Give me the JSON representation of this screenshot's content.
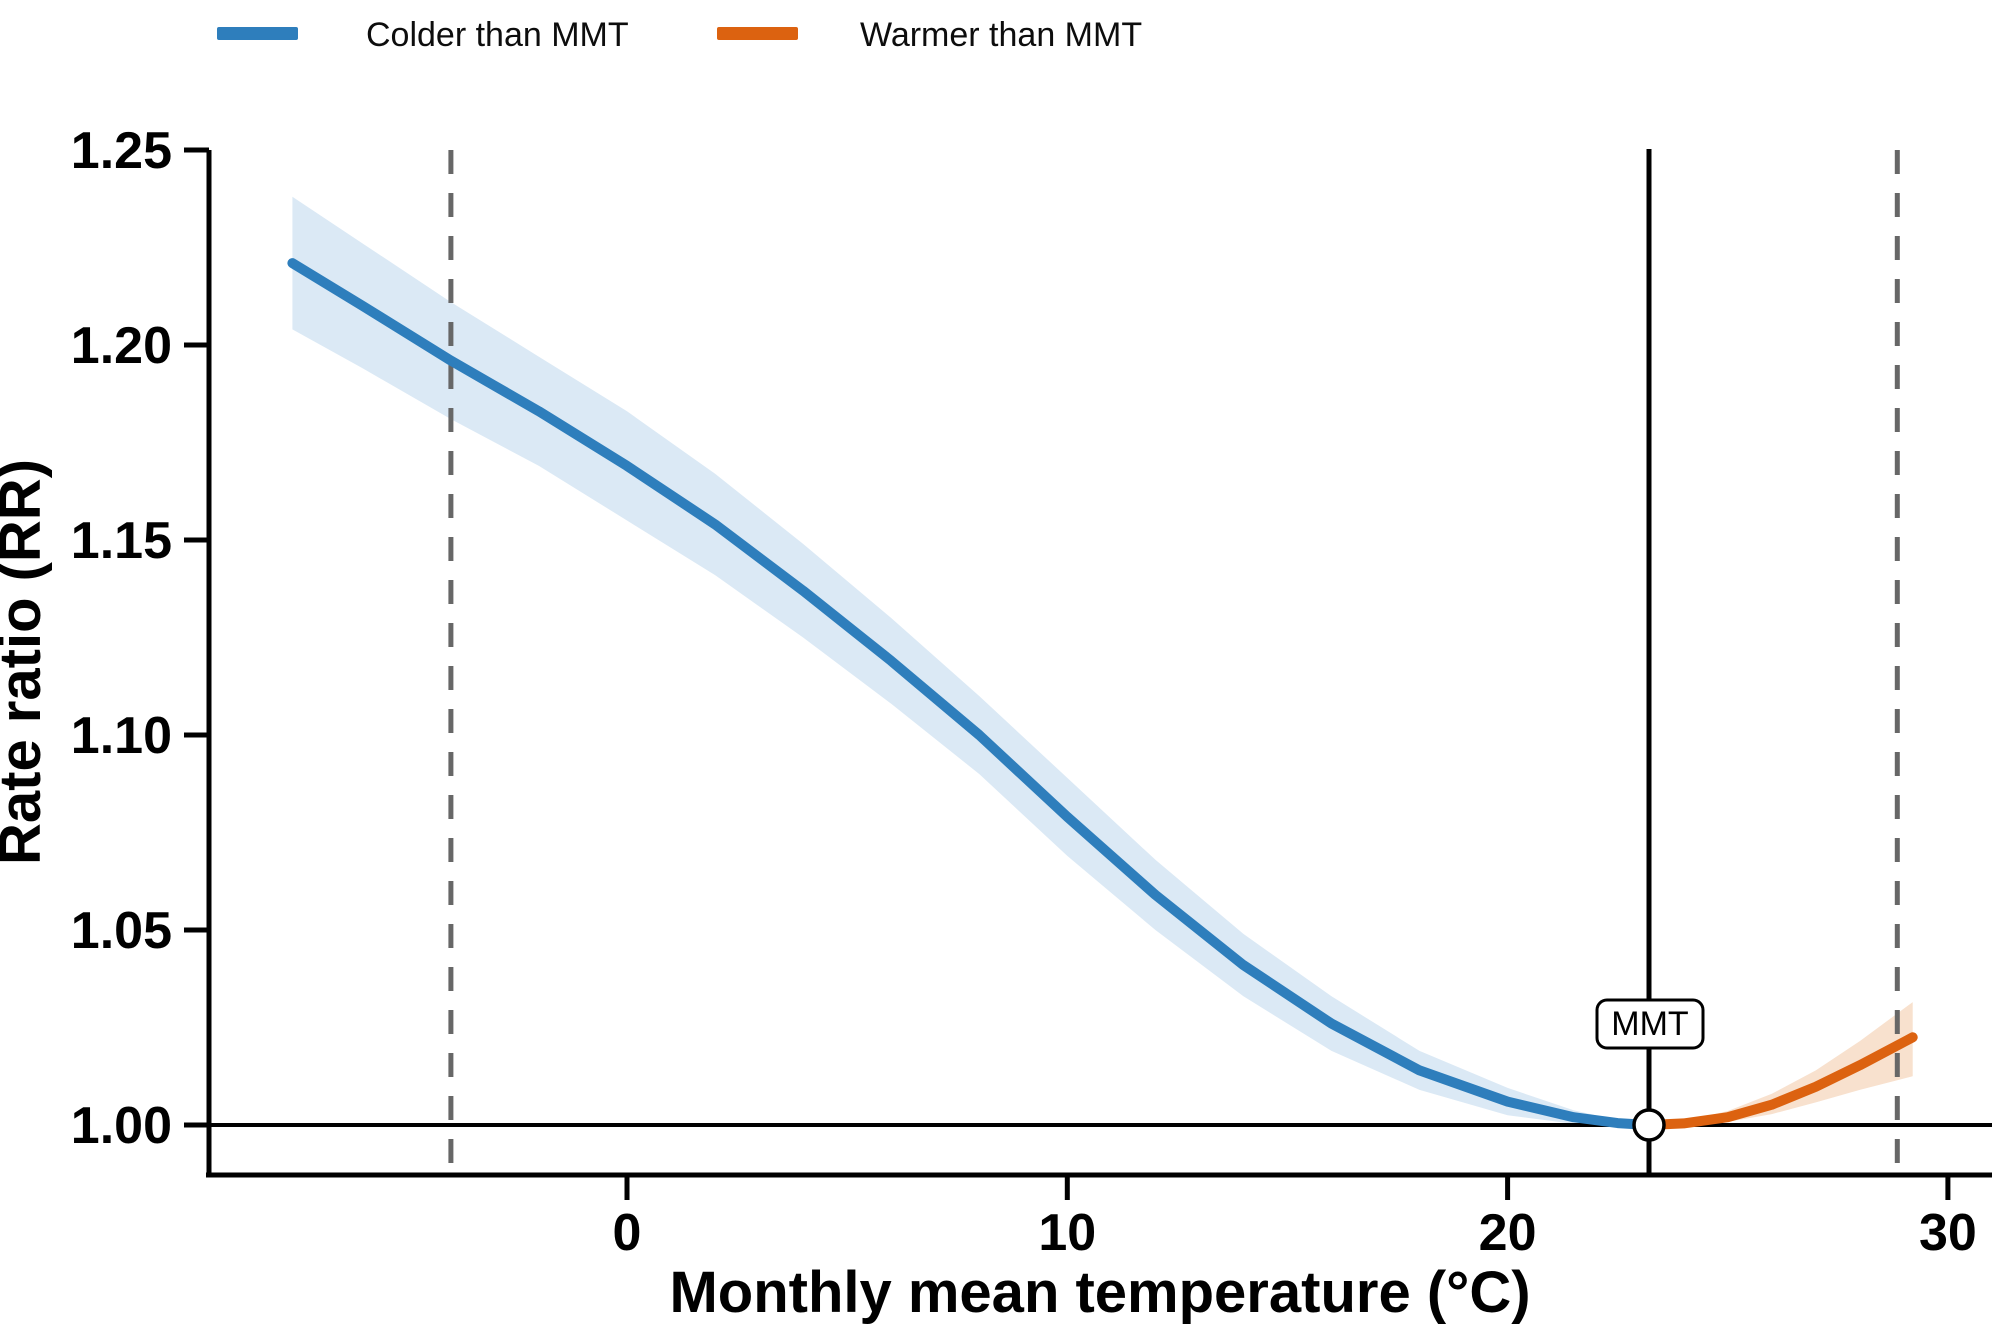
{
  "chart_data": {
    "type": "line",
    "title": "",
    "xlabel": "Monthly mean temperature (°C)",
    "ylabel": "Rate ratio (RR)",
    "x_ticks": [
      0,
      10,
      20,
      30
    ],
    "y_ticks": [
      "1.00",
      "1.05",
      "1.10",
      "1.15",
      "1.20",
      "1.25"
    ],
    "xlim": [
      -9.5,
      31
    ],
    "ylim": [
      0.987,
      1.25
    ],
    "reference_line_rr": 1.0,
    "dashed_guide_temps": [
      -4.0,
      28.85
    ],
    "mmt": {
      "label": "MMT",
      "temp": 23.2,
      "rr": 1.0
    },
    "legend": [
      "Colder than MMT",
      "Warmer than MMT"
    ],
    "colors": {
      "cold_line": "#2e7ebc",
      "cold_band": "#dbe9f5",
      "warm_line": "#dc6210",
      "warm_band": "#f8e1ce",
      "dashed_guide": "#676767",
      "axis": "#000000"
    },
    "series": [
      {
        "name": "Colder than MMT",
        "color": "#2e7ebc",
        "band_color": "#dbe9f5",
        "points_t_rr_lo_hi": [
          [
            -7.6,
            1.221,
            1.204,
            1.238
          ],
          [
            -6.0,
            1.21,
            1.194,
            1.226
          ],
          [
            -4.0,
            1.196,
            1.181,
            1.211
          ],
          [
            -2.0,
            1.183,
            1.169,
            1.197
          ],
          [
            0.0,
            1.169,
            1.155,
            1.183
          ],
          [
            2.0,
            1.154,
            1.141,
            1.167
          ],
          [
            4.0,
            1.137,
            1.125,
            1.149
          ],
          [
            6.0,
            1.119,
            1.108,
            1.13
          ],
          [
            8.0,
            1.1,
            1.09,
            1.11
          ],
          [
            10.0,
            1.079,
            1.069,
            1.089
          ],
          [
            12.0,
            1.059,
            1.05,
            1.068
          ],
          [
            14.0,
            1.041,
            1.033,
            1.049
          ],
          [
            16.0,
            1.026,
            1.019,
            1.033
          ],
          [
            18.0,
            1.014,
            1.009,
            1.019
          ],
          [
            20.0,
            1.006,
            1.0025,
            1.0095
          ],
          [
            21.5,
            1.002,
            1.0003,
            1.0038
          ],
          [
            22.5,
            1.0005,
            0.9998,
            1.0012
          ],
          [
            23.2,
            1.0,
            1.0,
            1.0
          ]
        ]
      },
      {
        "name": "Warmer than MMT",
        "color": "#dc6210",
        "band_color": "#f8e1ce",
        "points_t_rr_lo_hi": [
          [
            23.2,
            1.0,
            1.0,
            1.0
          ],
          [
            24.0,
            1.0004,
            1.0,
            1.0009
          ],
          [
            25.0,
            1.002,
            1.0008,
            1.0036
          ],
          [
            26.0,
            1.0052,
            1.0028,
            1.008
          ],
          [
            27.0,
            1.0098,
            1.0058,
            1.014
          ],
          [
            28.0,
            1.0153,
            1.009,
            1.0215
          ],
          [
            29.2,
            1.0225,
            1.0125,
            1.0315
          ]
        ]
      }
    ]
  }
}
